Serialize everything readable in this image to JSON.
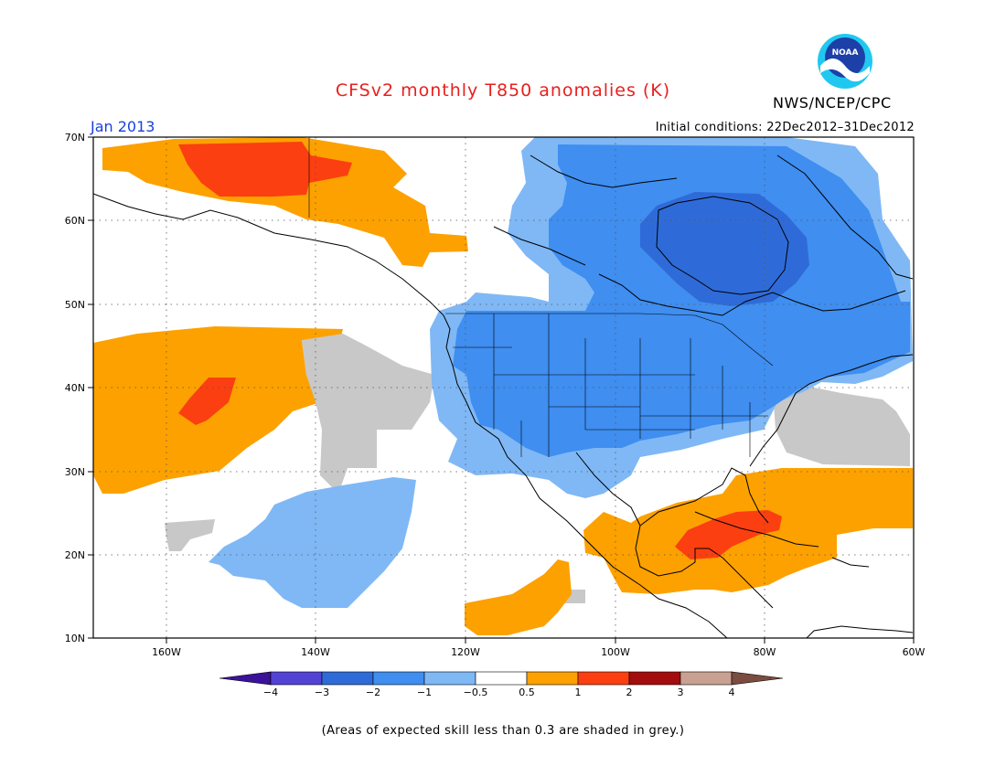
{
  "title": "CFSv2 monthly T850 anomalies (K)",
  "agency": "NWS/NCEP/CPC",
  "logo_text": "NOAA",
  "month": "Jan 2013",
  "initial_conditions": "Initial conditions: 22Dec2012–31Dec2012",
  "caption": "(Areas of expected skill less than 0.3 are shaded in grey.)",
  "lat_labels": [
    "70N",
    "60N",
    "50N",
    "40N",
    "30N",
    "20N",
    "10N"
  ],
  "lon_labels": [
    "160W",
    "140W",
    "120W",
    "100W",
    "80W",
    "60W"
  ],
  "colorbar": {
    "tick_labels": [
      "−4",
      "−3",
      "−2",
      "−1",
      "−0.5",
      "0.5",
      "1",
      "2",
      "3",
      "4"
    ],
    "colors": [
      "#3a1399",
      "#5343d4",
      "#2f6bd8",
      "#3f8ef0",
      "#7fb8f5",
      "#ffffff",
      "#fca100",
      "#fb3f11",
      "#a30d0d",
      "#c8a192",
      "#7b4c3f"
    ]
  },
  "shading_colors": {
    "skill_grey": "#c8c8c8",
    "pos_0_5_1": "#fca100",
    "pos_1_2": "#fb3f11",
    "neg_0_5_1": "#7fb8f5",
    "neg_1_2": "#3f8ef0",
    "neg_2_3": "#2f6bd8"
  }
}
